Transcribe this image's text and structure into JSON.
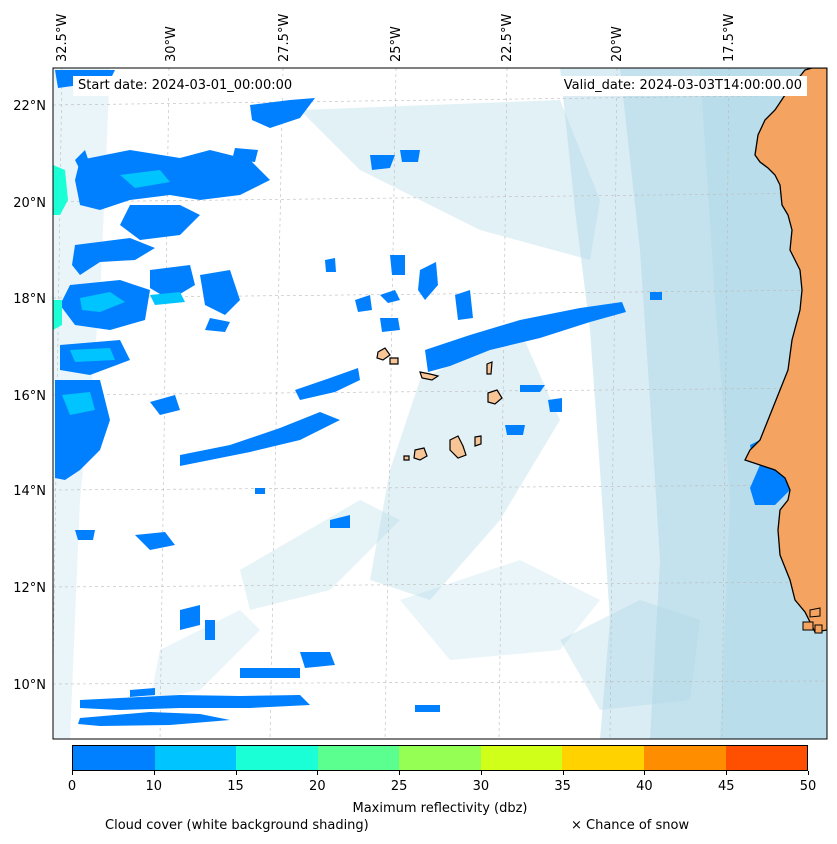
{
  "header": {
    "start_date": "Start date: 2024-03-01_00:00:00",
    "valid_date": "Valid_date: 2024-03-03T14:00:00.00"
  },
  "axes": {
    "longitude_labels": [
      "32.5°W",
      "30°W",
      "27.5°W",
      "25°W",
      "22.5°W",
      "20°W",
      "17.5°W"
    ],
    "latitude_labels": [
      "22°N",
      "20°N",
      "18°N",
      "16°N",
      "14°N",
      "12°N",
      "10°N"
    ]
  },
  "colorbar": {
    "label": "Maximum reflectivity (dbz)",
    "ticks": [
      "0",
      "10",
      "15",
      "20",
      "25",
      "30",
      "35",
      "40",
      "45",
      "50"
    ],
    "colors": [
      "#0080ff",
      "#00c4ff",
      "#1affd5",
      "#5bff8f",
      "#95ff54",
      "#d0ff1a",
      "#ffd200",
      "#ff8d00",
      "#ff4f00"
    ]
  },
  "notes": {
    "cloud_cover": "Cloud cover (white background shading)",
    "snow": "× Chance of snow"
  },
  "colors": {
    "land": "#f4a460",
    "islands": "#f7c596",
    "cloud_shading": "#add8e6",
    "reflectivity_low": "#0080ff",
    "reflectivity_mid": "#00c4ff"
  }
}
